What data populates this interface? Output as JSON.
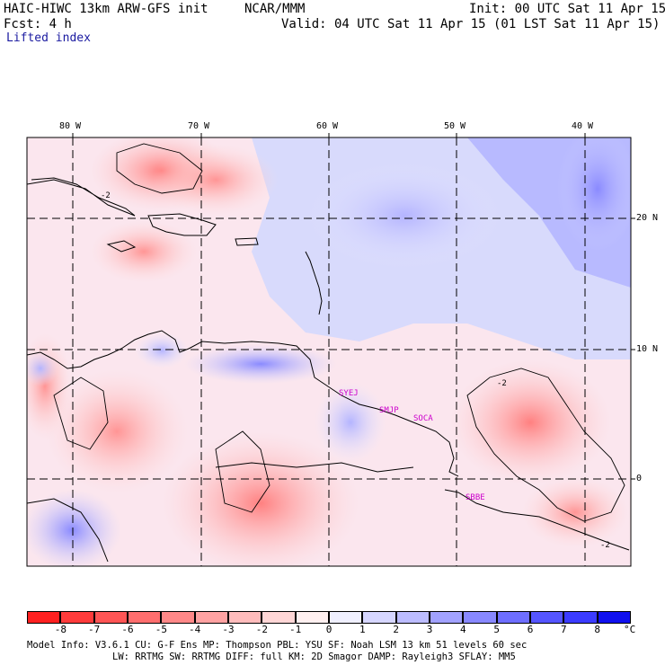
{
  "header": {
    "model_line": "HAIC-HIWC 13km ARW-GFS init",
    "org": "NCAR/MMM",
    "init": "Init: 00 UTC Sat 11 Apr 15",
    "fcst": "Fcst:    4 h",
    "valid": "Valid: 04 UTC Sat 11 Apr 15 (01 LST Sat 11 Apr 15)",
    "field": "Lifted index"
  },
  "map": {
    "lon_labels": [
      "80 W",
      "70 W",
      "60 W",
      "50 W",
      "40 W"
    ],
    "lat_labels": [
      "20 N",
      "10 N",
      "0"
    ],
    "stations": [
      "SYEJ",
      "SMJP",
      "SOCA",
      "SBBE"
    ],
    "contour_labels": [
      "-2",
      "-2",
      "-2"
    ],
    "colors": {
      "station": "#cc00cc",
      "gridline": "#000000"
    }
  },
  "colorbar": {
    "labels": [
      "-8",
      "-7",
      "-6",
      "-5",
      "-4",
      "-3",
      "-2",
      "-1",
      "0",
      "1",
      "2",
      "3",
      "4",
      "5",
      "6",
      "7",
      "8"
    ],
    "unit": "°C",
    "colors": [
      "#ff2020",
      "#ff3b3b",
      "#ff5555",
      "#ff6e6e",
      "#ff8888",
      "#ffa2a2",
      "#ffbcbc",
      "#ffd6d6",
      "#fff0f0",
      "#f0f0ff",
      "#d6d6ff",
      "#bcbcff",
      "#a2a2ff",
      "#8888ff",
      "#6e6eff",
      "#5555ff",
      "#3b3bff",
      "#1010ee"
    ]
  },
  "footer": {
    "line1": "Model Info: V3.6.1     CU: G-F Ens MP: Thompson     PBL: YSU      SF: Noah LSM     13 km   51 levels   60 sec",
    "line2": "LW: RRTMG     SW: RRTMG   DIFF: full     KM: 2D Smagor DAMP: Rayleigh3   SFLAY: MM5"
  }
}
